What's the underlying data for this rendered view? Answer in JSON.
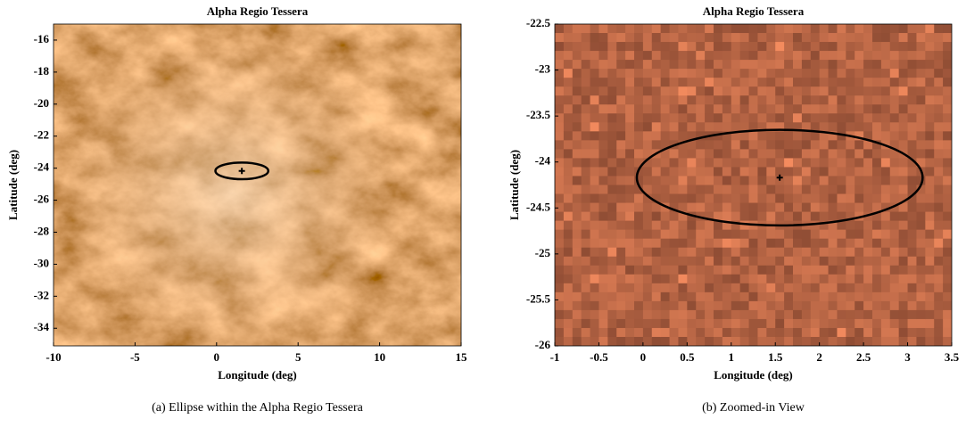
{
  "chart_data": [
    {
      "type": "image",
      "title": "Alpha Regio Tessera",
      "xlabel": "Longitude (deg)",
      "ylabel": "Latitude (deg)",
      "caption": "(a)  Ellipse within the Alpha Regio Tessera",
      "xlim": [
        -10,
        15
      ],
      "ylim": [
        -35.1,
        -15
      ],
      "xticks": [
        -10,
        -5,
        0,
        5,
        10,
        15
      ],
      "yticks": [
        -16,
        -18,
        -20,
        -22,
        -24,
        -26,
        -28,
        -30,
        -32,
        -34
      ],
      "ellipse": {
        "center": [
          1.55,
          -24.17
        ],
        "semi_axes": [
          1.62,
          0.52
        ],
        "color": "#000000"
      }
    },
    {
      "type": "image",
      "title": "Alpha Regio Tessera",
      "xlabel": "Longitude (deg)",
      "ylabel": "Latitude (deg)",
      "caption": "(b)  Zoomed-in View",
      "xlim": [
        -1,
        3.5
      ],
      "ylim": [
        -26,
        -22.5
      ],
      "xticks": [
        -1,
        -0.5,
        0,
        0.5,
        1,
        1.5,
        2,
        2.5,
        3,
        3.5
      ],
      "yticks": [
        -22.5,
        -23,
        -23.5,
        -24,
        -24.5,
        -25,
        -25.5,
        -26
      ],
      "ellipse": {
        "center": [
          1.55,
          -24.17
        ],
        "semi_axes": [
          1.62,
          0.52
        ],
        "color": "#000000"
      }
    }
  ]
}
